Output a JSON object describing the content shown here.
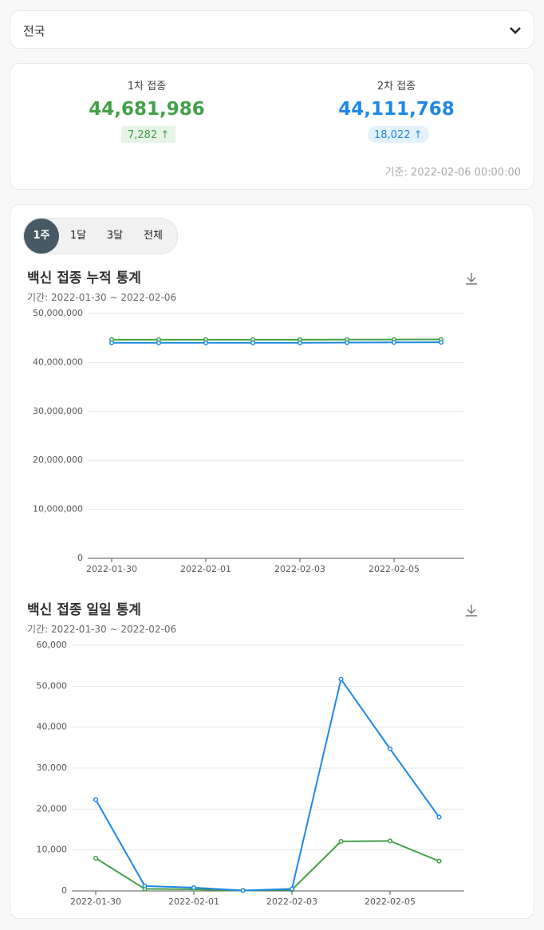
{
  "region": "전국",
  "summary": {
    "first": {
      "label": "1차 접종",
      "total": "44,681,986",
      "delta": "7,282"
    },
    "second": {
      "label": "2차 접종",
      "total": "44,111,768",
      "delta": "18,022"
    },
    "basis": "기준: 2022-02-06 00:00:00"
  },
  "tabs": [
    "1주",
    "1달",
    "3달",
    "전체"
  ],
  "chart_data": [
    {
      "type": "line",
      "title": "백신 접종 누적 통계",
      "subtitle": "기간: 2022-01-30 ~ 2022-02-06",
      "categories": [
        "2022-01-30",
        null,
        "2022-02-01",
        null,
        "2022-02-03",
        null,
        "2022-02-05",
        null
      ],
      "series": [
        {
          "color": "#43a047",
          "values": [
            44649104,
            44649604,
            44650004,
            44650104,
            44650404,
            44662504,
            44674704,
            44681986
          ]
        },
        {
          "color": "#1e88e5",
          "values": [
            44004746,
            44005946,
            44006746,
            44006846,
            44007346,
            44059046,
            44093746,
            44111768
          ]
        }
      ],
      "ylim": [
        0,
        50000000
      ],
      "yticks": [
        0,
        {
          "value": 10000000,
          "label": "10,000,000"
        },
        {
          "value": 20000000,
          "label": "20,000,000"
        },
        {
          "value": 30000000,
          "label": "30,000,000"
        },
        {
          "value": 40000000,
          "label": "40,000,000"
        },
        {
          "value": 50000000,
          "label": "50,000,000"
        }
      ],
      "grid": true
    },
    {
      "type": "line",
      "title": "백신 접종 일일 통계",
      "subtitle": "기간: 2022-01-30 ~ 2022-02-06",
      "categories": [
        "2022-01-30",
        null,
        "2022-02-01",
        null,
        "2022-02-03",
        null,
        "2022-02-05",
        null
      ],
      "series": [
        {
          "color": "#43a047",
          "values": [
            8000,
            500,
            400,
            100,
            300,
            12100,
            12200,
            7282
          ]
        },
        {
          "color": "#1e88e5",
          "values": [
            22300,
            1200,
            800,
            100,
            500,
            51700,
            34700,
            18022
          ]
        }
      ],
      "ylim": [
        0,
        60000
      ],
      "yticks": [
        0,
        {
          "value": 10000,
          "label": "10,000"
        },
        {
          "value": 20000,
          "label": "20,000"
        },
        {
          "value": 30000,
          "label": "30,000"
        },
        {
          "value": 40000,
          "label": "40,000"
        },
        {
          "value": 50000,
          "label": "50,000"
        },
        {
          "value": 60000,
          "label": "60,000"
        }
      ],
      "grid": true
    }
  ]
}
